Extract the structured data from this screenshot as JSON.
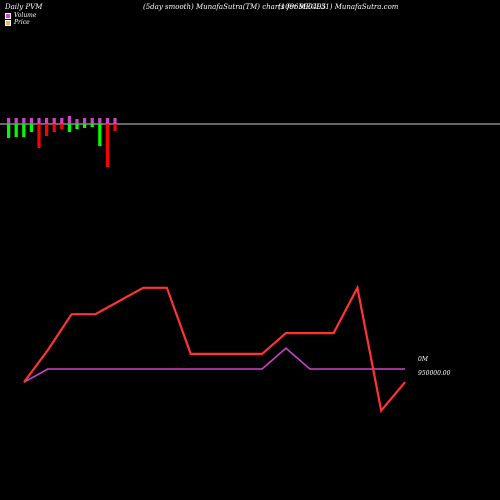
{
  "header": {
    "left": "Daily PVM",
    "middle": "(5day smooth) MunafaSutra(TM) charts for 960495",
    "right": "(1096MECL31) MunafaSutra.com"
  },
  "legend": {
    "volume": "Volume",
    "price": "Price",
    "volume_color": "#cc44cc",
    "price_color": "#ffaa66"
  },
  "labels": {
    "volume_axis": "0M",
    "price_axis": "950000.00"
  },
  "chart_data": {
    "type": "line",
    "series": [
      {
        "name": "Price",
        "color": "#ff3333",
        "values": [
          950000,
          951700,
          953600,
          953600,
          954300,
          955000,
          955000,
          951500,
          951500,
          951500,
          951500,
          952600,
          952600,
          952600,
          955000,
          948500,
          950000
        ]
      },
      {
        "name": "Volume",
        "color": "#cc44cc",
        "values": [
          950000,
          950700,
          950700,
          950700,
          950700,
          950700,
          950700,
          950700,
          950700,
          950700,
          950700,
          951800,
          950700,
          950700,
          950700,
          950700,
          950700
        ]
      }
    ],
    "volume_bars": {
      "up_color": "#00ff00",
      "down_color": "#ff0000",
      "values": [
        {
          "top": 6,
          "bottom": 14,
          "dir": "up"
        },
        {
          "top": 6,
          "bottom": 13,
          "dir": "up"
        },
        {
          "top": 6,
          "bottom": 13,
          "dir": "up"
        },
        {
          "top": 6,
          "bottom": 8,
          "dir": "up"
        },
        {
          "top": 6,
          "bottom": 24,
          "dir": "down"
        },
        {
          "top": 6,
          "bottom": 12,
          "dir": "down"
        },
        {
          "top": 6,
          "bottom": 8,
          "dir": "down"
        },
        {
          "top": 6,
          "bottom": 5,
          "dir": "down"
        },
        {
          "top": 8,
          "bottom": 8,
          "dir": "up"
        },
        {
          "top": 5,
          "bottom": 5,
          "dir": "up"
        },
        {
          "top": 6,
          "bottom": 4,
          "dir": "up"
        },
        {
          "top": 6,
          "bottom": 3,
          "dir": "up"
        },
        {
          "top": 6,
          "bottom": 22,
          "dir": "up"
        },
        {
          "top": 6,
          "bottom": 43,
          "dir": "down"
        },
        {
          "top": 6,
          "bottom": 7,
          "dir": "down"
        }
      ]
    },
    "ylim": [
      948000,
      957000
    ],
    "grid": false
  }
}
